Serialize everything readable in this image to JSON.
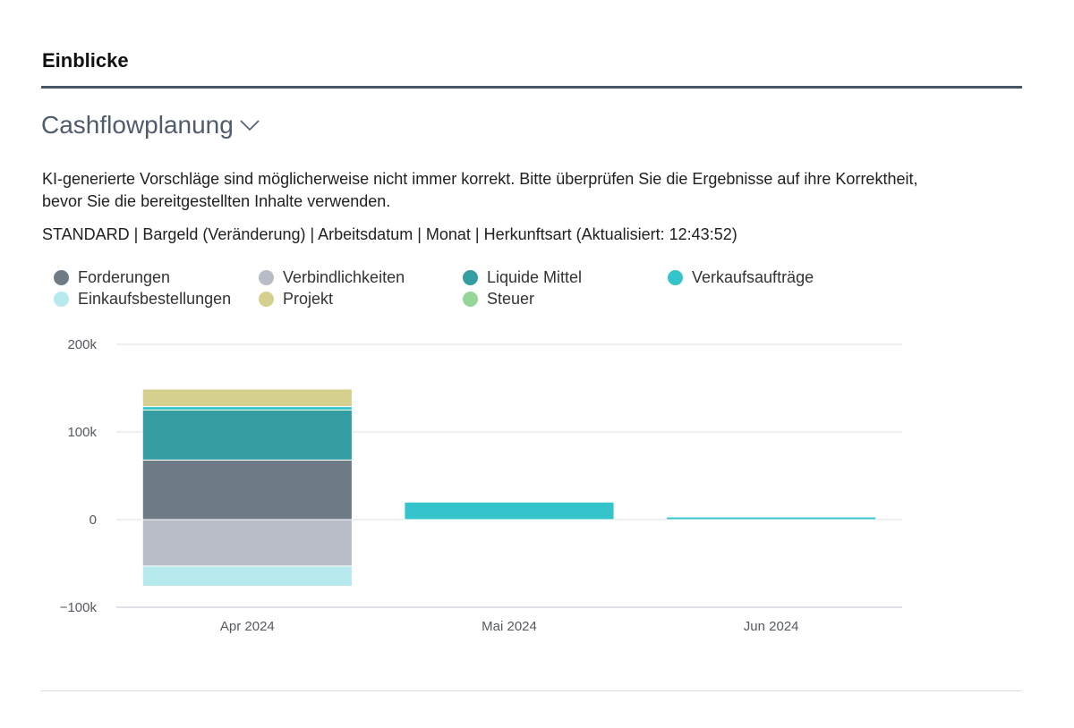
{
  "section": {
    "title": "Einblicke"
  },
  "part": {
    "title": "Cashflowplanung",
    "chevron_icon": "chevron-down-icon"
  },
  "disclaimer": "KI-generierte Vorschläge sind möglicherweise nicht immer korrekt. Bitte überprüfen Sie die Ergebnisse auf ihre Korrektheit, bevor Sie die bereitgestellten Inhalte verwenden.",
  "settings_line": "STANDARD | Bargeld (Veränderung) | Arbeitsdatum | Monat | Herkunftsart (Aktualisiert: 12:43:52)",
  "chart_data": {
    "type": "bar",
    "stacked": true,
    "categories": [
      "Apr 2024",
      "Mai 2024",
      "Jun 2024"
    ],
    "yticks": [
      "200k",
      "100k",
      "0",
      "−100k"
    ],
    "ytick_values": [
      200000,
      100000,
      0,
      -100000
    ],
    "ylim": [
      -100000,
      200000
    ],
    "grid": true,
    "legend_position": "top",
    "series": [
      {
        "name": "Forderungen",
        "color": "#6f7a87",
        "values": [
          68000,
          0,
          0
        ]
      },
      {
        "name": "Verbindlichkeiten",
        "color": "#b8bcc6",
        "values": [
          -53000,
          0,
          0
        ]
      },
      {
        "name": "Liquide Mittel",
        "color": "#339da2",
        "values": [
          57000,
          0,
          0
        ]
      },
      {
        "name": "Verkaufsaufträge",
        "color": "#35c3cc",
        "values": [
          4000,
          20000,
          3000
        ]
      },
      {
        "name": "Einkaufsbestellungen",
        "color": "#b6eaee",
        "values": [
          -23000,
          0,
          0
        ]
      },
      {
        "name": "Projekt",
        "color": "#d5d08e",
        "values": [
          20000,
          0,
          0
        ]
      },
      {
        "name": "Steuer",
        "color": "#93d698",
        "values": [
          0,
          0,
          0
        ]
      }
    ]
  }
}
